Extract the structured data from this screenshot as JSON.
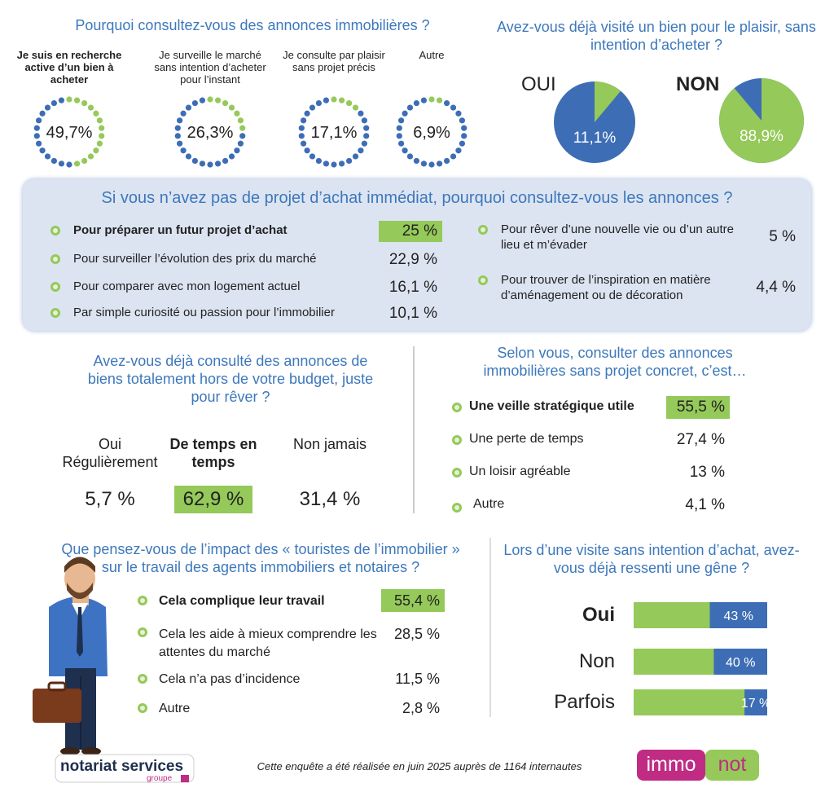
{
  "reasons": {
    "title": "Pourquoi consultez-vous des annonces immobilières ?",
    "items": [
      {
        "label": "Je suis en recherche active d’un bien à acheter",
        "value": 49.7,
        "value_label": "49,7%"
      },
      {
        "label": "Je surveille le marché sans intention d’acheter pour l’instant",
        "value": 26.3,
        "value_label": "26,3%"
      },
      {
        "label": "Je consulte par plaisir sans projet précis",
        "value": 17.1,
        "value_label": "17,1%"
      },
      {
        "label": "Autre",
        "value": 6.9,
        "value_label": "6,9%"
      }
    ]
  },
  "visited": {
    "title": "Avez-vous déjà visité un bien pour le plaisir, sans intention d’acheter ?",
    "items": [
      {
        "label": "OUI",
        "value": 11.1,
        "value_label": "11,1%"
      },
      {
        "label": "NON",
        "value": 88.9,
        "value_label": "88,9%"
      }
    ]
  },
  "no_project": {
    "title": "Si vous n’avez pas de projet d’achat immédiat, pourquoi consultez-vous les annonces ?",
    "items": [
      {
        "label": "Pour préparer un futur projet d’achat",
        "value": 25,
        "value_label": "25 %"
      },
      {
        "label": "Pour surveiller l’évolution des prix du marché",
        "value": 22.9,
        "value_label": "22,9 %"
      },
      {
        "label": "Pour comparer avec mon logement actuel",
        "value": 16.1,
        "value_label": "16,1 %"
      },
      {
        "label": "Par simple curiosité ou passion pour l’immobilier",
        "value": 10.1,
        "value_label": "10,1 %"
      },
      {
        "label": "Pour rêver d’une nouvelle vie ou d’un autre lieu et m’évader",
        "value": 5,
        "value_label": "5 %"
      },
      {
        "label": "Pour trouver de l’inspiration en matière d’aménagement ou de décoration",
        "value": 4.4,
        "value_label": "4,4 %"
      }
    ]
  },
  "budget": {
    "title": "Avez-vous déjà consulté des annonces de biens totalement hors de votre budget, juste pour rêver ?",
    "items": [
      {
        "label": "Oui Régulièrement",
        "value": 5.7,
        "value_label": "5,7 %"
      },
      {
        "label": "De temps en temps",
        "value": 62.9,
        "value_label": "62,9 %"
      },
      {
        "label": "Non jamais",
        "value": 31.4,
        "value_label": "31,4 %"
      }
    ]
  },
  "opinion": {
    "title": "Selon vous, consulter des annonces immobilières sans projet concret, c’est…",
    "items": [
      {
        "label": "Une veille stratégique utile",
        "value": 55.5,
        "value_label": "55,5 %"
      },
      {
        "label": "Une perte de temps",
        "value": 27.4,
        "value_label": "27,4 %"
      },
      {
        "label": "Un loisir agréable",
        "value": 13,
        "value_label": "13 %"
      },
      {
        "label": "Autre",
        "value": 4.1,
        "value_label": "4,1 %"
      }
    ]
  },
  "impact": {
    "title": "Que pensez-vous de l’impact des « touristes de l’immobilier » sur le travail des agents immobiliers et notaires ?",
    "items": [
      {
        "label": "Cela complique leur travail",
        "value": 55.4,
        "value_label": "55,4 %"
      },
      {
        "label": "Cela les aide à mieux comprendre les attentes du marché",
        "value": 28.5,
        "value_label": "28,5 %"
      },
      {
        "label": "Cela n’a pas d’incidence",
        "value": 11.5,
        "value_label": "11,5 %"
      },
      {
        "label": "Autre",
        "value": 2.8,
        "value_label": "2,8 %"
      }
    ]
  },
  "discomfort": {
    "title": "Lors d’une visite sans intention d’achat, avez-vous déjà ressenti une gêne ?",
    "items": [
      {
        "label": "Oui",
        "value": 43,
        "value_label": "43 %"
      },
      {
        "label": "Non",
        "value": 40,
        "value_label": "40 %"
      },
      {
        "label": "Parfois",
        "value": 17,
        "value_label": "17 %"
      }
    ]
  },
  "footer": {
    "note": "Cette enquête a été réalisée en juin 2025 auprès de 1164 internautes",
    "brand_left": "notariat services",
    "brand_left_sub": "groupe",
    "brand_right_a": "immo",
    "brand_right_b": "not"
  }
}
